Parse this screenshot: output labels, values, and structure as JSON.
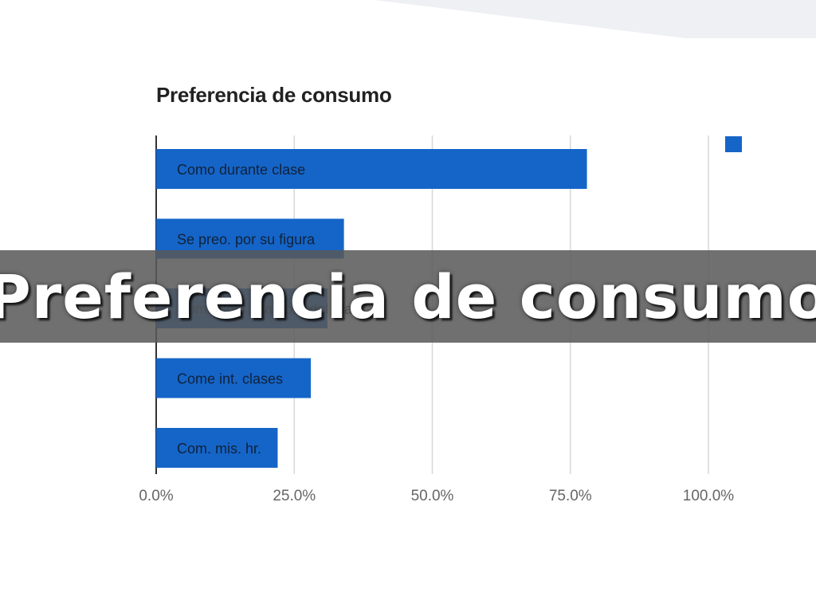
{
  "slide": {
    "overlay_title": "Preferencia de consumo"
  },
  "chart_data": {
    "type": "bar",
    "orientation": "horizontal",
    "title": "Preferencia de consumo",
    "categories": [
      "Como durante clase",
      "Se preo. por su figura",
      "Come solo a la hora del día",
      "Come int. clases",
      "Com. mis. hr."
    ],
    "values": [
      0.78,
      0.34,
      0.31,
      0.28,
      0.22
    ],
    "xlim": [
      0,
      1
    ],
    "xticks": [
      "0.0%",
      "25.0%",
      "50.0%",
      "75.0%",
      "100.0%"
    ],
    "grid": true,
    "legend": "top-right",
    "legend_entries": [
      ""
    ],
    "colors": {
      "bar": "#1565c8",
      "label": "#10223a",
      "tick": "#666666",
      "grid": "#d8d8d8",
      "axis": "#333333"
    }
  }
}
